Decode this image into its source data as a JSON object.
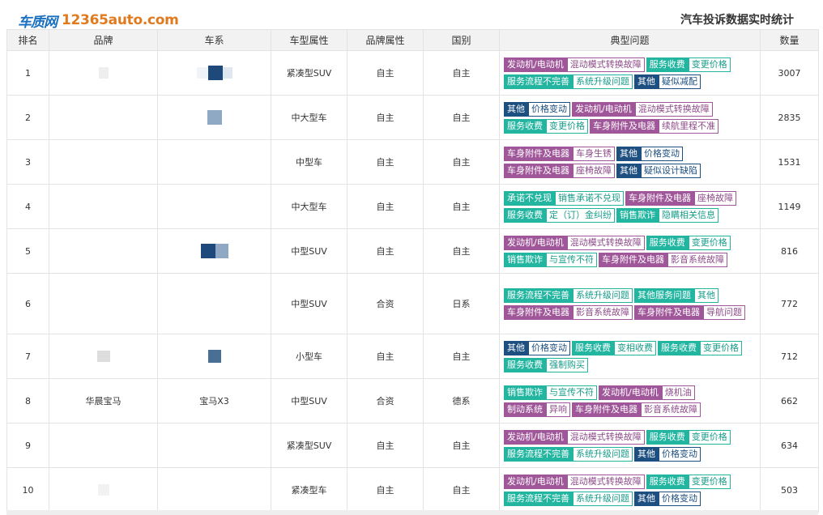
{
  "header": {
    "logo_cn": "车质网",
    "logo_en": "12365auto.com",
    "title": "汽车投诉数据实时统计"
  },
  "columns": [
    "排名",
    "品牌",
    "车系",
    "车型属性",
    "品牌属性",
    "国别",
    "典型问题",
    "数量"
  ],
  "colors": {
    "purple": "#a0579a",
    "teal": "#22b5a0",
    "navy": "#1d4f80"
  },
  "rows": [
    {
      "rank": "1",
      "brand": "",
      "series": "",
      "type": "紧凑型SUV",
      "brand_attr": "自主",
      "country": "自主",
      "count": "3007",
      "issues": [
        {
          "cat": "发动机/电动机",
          "sub": "混动模式转换故障",
          "color": "purple"
        },
        {
          "cat": "服务收费",
          "sub": "变更价格",
          "color": "teal"
        },
        {
          "cat": "服务流程不完善",
          "sub": "系统升级问题",
          "color": "teal"
        },
        {
          "cat": "其他",
          "sub": "疑似减配",
          "color": "navy"
        }
      ]
    },
    {
      "rank": "2",
      "brand": "",
      "series": "",
      "type": "中大型车",
      "brand_attr": "自主",
      "country": "自主",
      "count": "2835",
      "issues": [
        {
          "cat": "其他",
          "sub": "价格变动",
          "color": "navy"
        },
        {
          "cat": "发动机/电动机",
          "sub": "混动模式转换故障",
          "color": "purple"
        },
        {
          "cat": "服务收费",
          "sub": "变更价格",
          "color": "teal"
        },
        {
          "cat": "车身附件及电器",
          "sub": "续航里程不准",
          "color": "purple"
        }
      ]
    },
    {
      "rank": "3",
      "brand": "",
      "series": "",
      "type": "中型车",
      "brand_attr": "自主",
      "country": "自主",
      "count": "1531",
      "issues": [
        {
          "cat": "车身附件及电器",
          "sub": "车身生锈",
          "color": "purple"
        },
        {
          "cat": "其他",
          "sub": "价格变动",
          "color": "navy"
        },
        {
          "cat": "车身附件及电器",
          "sub": "座椅故障",
          "color": "purple"
        },
        {
          "cat": "其他",
          "sub": "疑似设计缺陷",
          "color": "navy"
        }
      ]
    },
    {
      "rank": "4",
      "brand": "",
      "series": "",
      "type": "中大型车",
      "brand_attr": "自主",
      "country": "自主",
      "count": "1149",
      "issues": [
        {
          "cat": "承诺不兑现",
          "sub": "销售承诺不兑现",
          "color": "teal"
        },
        {
          "cat": "车身附件及电器",
          "sub": "座椅故障",
          "color": "purple"
        },
        {
          "cat": "服务收费",
          "sub": "定（订）金纠纷",
          "color": "teal"
        },
        {
          "cat": "销售欺诈",
          "sub": "隐瞒相关信息",
          "color": "teal"
        }
      ]
    },
    {
      "rank": "5",
      "brand": "",
      "series": "",
      "type": "中型SUV",
      "brand_attr": "自主",
      "country": "自主",
      "count": "816",
      "issues": [
        {
          "cat": "发动机/电动机",
          "sub": "混动模式转换故障",
          "color": "purple"
        },
        {
          "cat": "服务收费",
          "sub": "变更价格",
          "color": "teal"
        },
        {
          "cat": "销售欺诈",
          "sub": "与宣传不符",
          "color": "teal"
        },
        {
          "cat": "车身附件及电器",
          "sub": "影音系统故障",
          "color": "purple"
        }
      ]
    },
    {
      "rank": "6",
      "brand": "",
      "series": "",
      "type": "中型SUV",
      "brand_attr": "合资",
      "country": "日系",
      "count": "772",
      "issues": [
        {
          "cat": "服务流程不完善",
          "sub": "系统升级问题",
          "color": "teal"
        },
        {
          "cat": "其他服务问题",
          "sub": "其他",
          "color": "teal"
        },
        {
          "cat": "车身附件及电器",
          "sub": "影音系统故障",
          "color": "purple"
        },
        {
          "cat": "车身附件及电器",
          "sub": "导航问题",
          "color": "purple"
        }
      ]
    },
    {
      "rank": "7",
      "brand": "",
      "series": "",
      "type": "小型车",
      "brand_attr": "自主",
      "country": "自主",
      "count": "712",
      "issues": [
        {
          "cat": "其他",
          "sub": "价格变动",
          "color": "navy"
        },
        {
          "cat": "服务收费",
          "sub": "变相收费",
          "color": "teal"
        },
        {
          "cat": "服务收费",
          "sub": "变更价格",
          "color": "teal"
        },
        {
          "cat": "服务收费",
          "sub": "强制购买",
          "color": "teal"
        }
      ]
    },
    {
      "rank": "8",
      "brand": "华晨宝马",
      "series": "宝马X3",
      "type": "中型SUV",
      "brand_attr": "合资",
      "country": "德系",
      "count": "662",
      "issues": [
        {
          "cat": "销售欺诈",
          "sub": "与宣传不符",
          "color": "teal"
        },
        {
          "cat": "发动机/电动机",
          "sub": "烧机油",
          "color": "purple"
        },
        {
          "cat": "制动系统",
          "sub": "异响",
          "color": "purple"
        },
        {
          "cat": "车身附件及电器",
          "sub": "影音系统故障",
          "color": "purple"
        }
      ]
    },
    {
      "rank": "9",
      "brand": "",
      "series": "",
      "type": "紧凑型SUV",
      "brand_attr": "自主",
      "country": "自主",
      "count": "634",
      "issues": [
        {
          "cat": "发动机/电动机",
          "sub": "混动模式转换故障",
          "color": "purple"
        },
        {
          "cat": "服务收费",
          "sub": "变更价格",
          "color": "teal"
        },
        {
          "cat": "服务流程不完善",
          "sub": "系统升级问题",
          "color": "teal"
        },
        {
          "cat": "其他",
          "sub": "价格变动",
          "color": "navy"
        }
      ]
    },
    {
      "rank": "10",
      "brand": "",
      "series": "",
      "type": "紧凑型车",
      "brand_attr": "自主",
      "country": "自主",
      "count": "503",
      "issues": [
        {
          "cat": "发动机/电动机",
          "sub": "混动模式转换故障",
          "color": "purple"
        },
        {
          "cat": "服务收费",
          "sub": "变更价格",
          "color": "teal"
        },
        {
          "cat": "服务流程不完善",
          "sub": "系统升级问题",
          "color": "teal"
        },
        {
          "cat": "其他",
          "sub": "价格变动",
          "color": "navy"
        }
      ]
    }
  ]
}
